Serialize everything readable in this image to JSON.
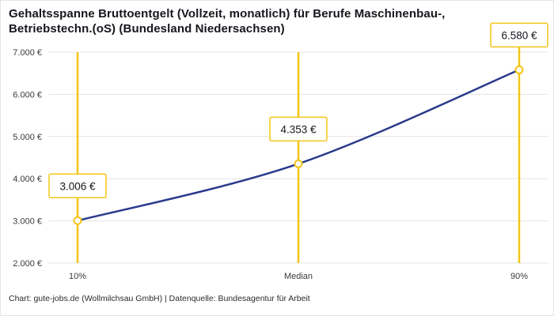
{
  "header": {
    "title_lines": [
      "Gehaltsspanne Bruttoentgelt (Vollzeit, monatlich) für Berufe Maschinenbau-,",
      "Betriebstechn.(oS) (Bundesland Niedersachsen)"
    ]
  },
  "footer": {
    "text": "Chart: gute-jobs.de (Wollmilchsau GmbH) | Datenquelle: Bundesagentur für Arbeit"
  },
  "colors": {
    "accent_yellow": "#f3c517",
    "line_blue": "#2a3a8c",
    "grid": "#e4e4e4",
    "axis_text": "#3a3a3a",
    "label_text": "#16161d",
    "box_fill": "#ffffff",
    "background": "#ffffff"
  },
  "chart_data": {
    "type": "line",
    "title": "Gehaltsspanne Bruttoentgelt (Vollzeit, monatlich) für Berufe Maschinenbau-, Betriebstechn.(oS) (Bundesland Niedersachsen)",
    "categories": [
      "10%",
      "Median",
      "90%"
    ],
    "values": [
      3006,
      4353,
      6580
    ],
    "value_labels": [
      "3.006 €",
      "4.353 €",
      "6.580 €"
    ],
    "ylim": [
      2000,
      7000
    ],
    "ytick_step": 1000,
    "ytick_labels": [
      "2.000 €",
      "3.000 €",
      "4.000 €",
      "5.000 €",
      "6.000 €",
      "7.000 €"
    ],
    "xlabel": "",
    "ylabel": "",
    "grid": true,
    "legend": false,
    "marker": "open-circle"
  }
}
